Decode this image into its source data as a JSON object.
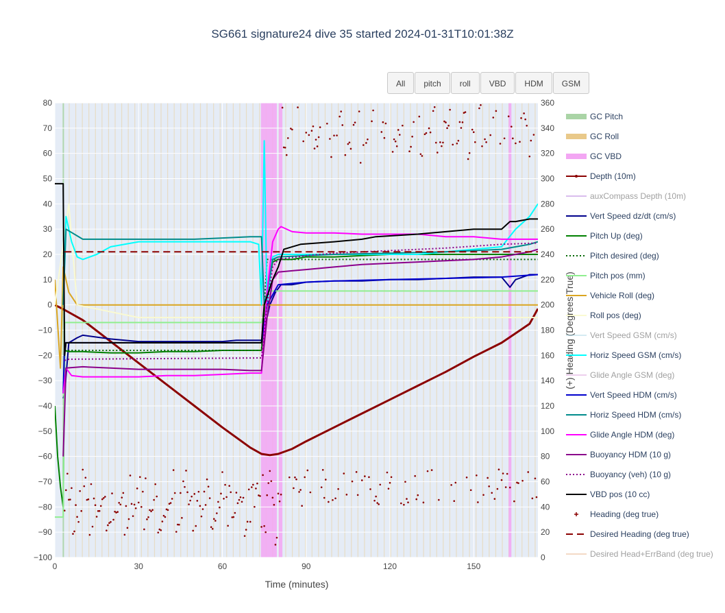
{
  "title": "SG661 signature24 dive 35 started 2024-01-31T10:01:38Z",
  "buttons": [
    {
      "label": "All"
    },
    {
      "label": "pitch"
    },
    {
      "label": "roll"
    },
    {
      "label": "VBD"
    },
    {
      "label": "HDM"
    },
    {
      "label": "GSM"
    }
  ],
  "chart_data": {
    "type": "line",
    "xlabel": "Time (minutes)",
    "ylabel": "",
    "y2label": "(+) Heading (Degrees True)",
    "xlim": [
      0,
      173
    ],
    "ylim": [
      -100,
      80
    ],
    "y2lim": [
      0,
      360
    ],
    "xticks": [
      0,
      30,
      60,
      90,
      120,
      150
    ],
    "yticks": [
      -100,
      -90,
      -80,
      -70,
      -60,
      -50,
      -40,
      -30,
      -20,
      -10,
      0,
      10,
      20,
      30,
      40,
      50,
      60,
      70,
      80
    ],
    "y2ticks": [
      0,
      20,
      40,
      60,
      80,
      100,
      120,
      140,
      160,
      180,
      200,
      220,
      240,
      260,
      280,
      300,
      320,
      340,
      360
    ],
    "grid": true,
    "legend_position": "right",
    "series": [
      {
        "name": "GC Pitch",
        "style": "band",
        "color": "#aad4a6",
        "visible": true
      },
      {
        "name": "GC Roll",
        "style": "band",
        "color": "#e9c98a",
        "visible": true
      },
      {
        "name": "GC VBD",
        "style": "band",
        "color": "#f3a6f3",
        "visible": true
      },
      {
        "name": "Depth (10m)",
        "style": "line-marker",
        "color": "#8b0000",
        "visible": true,
        "x": [
          0,
          3.5,
          10,
          20,
          30,
          40,
          50,
          60,
          70,
          74,
          77,
          80,
          85,
          90,
          100,
          110,
          120,
          130,
          140,
          150,
          160,
          170,
          173
        ],
        "y": [
          0,
          -2,
          -6,
          -14.5,
          -23,
          -31.5,
          -40,
          -48.5,
          -56.5,
          -59,
          -59.5,
          -59,
          -57,
          -54,
          -48.5,
          -43,
          -37.5,
          -32,
          -26.5,
          -20.5,
          -15,
          -7.5,
          -1.5
        ]
      },
      {
        "name": "auxCompass Depth (10m)",
        "style": "line",
        "color": "#b57edc",
        "visible": false
      },
      {
        "name": "Vert Speed dz/dt (cm/s)",
        "style": "line",
        "color": "#00008b",
        "visible": true,
        "x": [
          3,
          3.5,
          5,
          8,
          10,
          20,
          30,
          40,
          50,
          60,
          65,
          70,
          74,
          75,
          77,
          79,
          81,
          85,
          90,
          100,
          110,
          120,
          130,
          140,
          150,
          160,
          163,
          165,
          170,
          173
        ],
        "y": [
          -37,
          -35,
          -15,
          -13,
          -12,
          -13.5,
          -14.5,
          -14.5,
          -14.5,
          -14.5,
          -14,
          -14,
          -14,
          -10,
          0,
          5,
          8,
          8,
          9,
          9.5,
          9.5,
          10,
          10,
          10.5,
          11,
          11,
          7,
          10,
          12,
          12
        ]
      },
      {
        "name": "Pitch Up (deg)",
        "style": "line",
        "color": "#008000",
        "visible": true,
        "x": [
          0,
          1,
          2,
          3,
          3.5,
          5,
          10,
          20,
          30,
          40,
          50,
          60,
          70,
          74,
          76,
          78,
          80,
          85,
          90,
          100,
          110,
          120,
          130,
          140,
          150,
          160,
          165,
          170,
          173
        ],
        "y": [
          -40,
          -60,
          -72,
          -80,
          -18,
          -18.5,
          -18.5,
          -19,
          -19,
          -18.5,
          -18.5,
          -18,
          -18,
          -18,
          5,
          17,
          18,
          18,
          19,
          19,
          19.5,
          20,
          20,
          20,
          20,
          20,
          20,
          20,
          20
        ]
      },
      {
        "name": "Pitch desired (deg)",
        "style": "dot",
        "color": "#006400",
        "visible": true,
        "x": [
          3.5,
          74,
          76,
          173
        ],
        "y": [
          -18,
          -18,
          18,
          18
        ]
      },
      {
        "name": "Pitch pos (mm)",
        "style": "line",
        "color": "#90ee90",
        "visible": true,
        "x": [
          0,
          3,
          3.5,
          74,
          76,
          173
        ],
        "y": [
          -84,
          -84,
          -7,
          -7,
          5.5,
          5.5
        ]
      },
      {
        "name": "Vehicle Roll (deg)",
        "style": "line",
        "color": "#daa520",
        "visible": true,
        "x": [
          0,
          2,
          3,
          5,
          8,
          10,
          20,
          30,
          75,
          80,
          90,
          100,
          110,
          120,
          130,
          140,
          150,
          160,
          170,
          173
        ],
        "y": [
          10,
          -25,
          15,
          5,
          0,
          0,
          0,
          0,
          0,
          0,
          0,
          0,
          0,
          0,
          0,
          0,
          0,
          0,
          0,
          0
        ]
      },
      {
        "name": "Roll pos (deg)",
        "style": "line",
        "color": "#fafad2",
        "visible": true,
        "x": [
          0,
          5,
          8,
          30,
          75,
          80,
          173
        ],
        "y": [
          0,
          40,
          0,
          -5,
          -5,
          -5,
          -5
        ]
      },
      {
        "name": "Vert Speed GSM (cm/s)",
        "style": "line",
        "color": "#add8e6",
        "visible": false
      },
      {
        "name": "Horiz Speed GSM (cm/s)",
        "style": "line",
        "color": "#00ffff",
        "visible": true,
        "x": [
          3,
          4,
          6,
          8,
          10,
          15,
          20,
          30,
          40,
          50,
          60,
          70,
          73,
          74,
          75,
          76,
          78,
          80,
          85,
          90,
          100,
          110,
          120,
          130,
          140,
          150,
          160,
          165,
          170,
          173
        ],
        "y": [
          0,
          35,
          25,
          19,
          18,
          20,
          23,
          25,
          25,
          25,
          25,
          25,
          24,
          0,
          65,
          0,
          19,
          20,
          20,
          20,
          20,
          20,
          20,
          20,
          21,
          22,
          23,
          30,
          35,
          40
        ]
      },
      {
        "name": "Glide Angle GSM (deg)",
        "style": "line",
        "color": "#dda0dd",
        "visible": false
      },
      {
        "name": "Vert Speed HDM (cm/s)",
        "style": "line",
        "color": "#0000cd",
        "visible": true,
        "x": [
          3,
          3.5,
          74,
          76,
          80,
          90,
          100,
          120,
          140,
          160,
          173
        ],
        "y": [
          -35,
          -15,
          -15,
          0,
          8,
          9,
          9.5,
          10,
          10.5,
          11,
          12
        ]
      },
      {
        "name": "Horiz Speed HDM (cm/s)",
        "style": "line",
        "color": "#008b8b",
        "visible": true,
        "x": [
          3,
          4,
          10,
          20,
          30,
          40,
          50,
          60,
          70,
          74,
          75,
          76,
          78,
          80,
          90,
          100,
          120,
          140,
          160,
          170,
          173
        ],
        "y": [
          0,
          30,
          26,
          26,
          26,
          26,
          26,
          26.5,
          27,
          27,
          0,
          5,
          18,
          19,
          19.5,
          20,
          20.5,
          21,
          22,
          24,
          25
        ]
      },
      {
        "name": "Glide Angle HDM (deg)",
        "style": "line",
        "color": "#ff00ff",
        "visible": true,
        "x": [
          3,
          4,
          6,
          10,
          20,
          30,
          40,
          50,
          60,
          70,
          74,
          76,
          78,
          80,
          81,
          85,
          90,
          100,
          110,
          120,
          130,
          140,
          150,
          160,
          170,
          173
        ],
        "y": [
          -35,
          -25,
          -28,
          -28.5,
          -28.5,
          -28.5,
          -28,
          -28,
          -27.5,
          -27,
          -27,
          5,
          25,
          30,
          31,
          29,
          28.5,
          28.5,
          28,
          28,
          28,
          27,
          27,
          26,
          26,
          26
        ]
      },
      {
        "name": "Buoyancy HDM (10 g)",
        "style": "line",
        "color": "#8b008b",
        "visible": true,
        "x": [
          3,
          4,
          10,
          20,
          30,
          40,
          50,
          60,
          70,
          74,
          76,
          78,
          80,
          85,
          90,
          100,
          110,
          120,
          130,
          140,
          150,
          160,
          170,
          173
        ],
        "y": [
          -60,
          -25,
          -24.5,
          -25,
          -25.5,
          -25.5,
          -25.5,
          -25.5,
          -26,
          -26,
          -5,
          10,
          13,
          13.5,
          14,
          15,
          16,
          16.5,
          17,
          17.5,
          18,
          19,
          21,
          22
        ]
      },
      {
        "name": "Buoyancy (veh) (10 g)",
        "style": "dot",
        "color": "#8b008b",
        "visible": true,
        "x": [
          3.5,
          5,
          74,
          76,
          78,
          80,
          90,
          100,
          120,
          140,
          160,
          173
        ],
        "y": [
          -22,
          -21.5,
          -21,
          0,
          15,
          18,
          19.5,
          20.5,
          21.5,
          22.5,
          24,
          24.5
        ]
      },
      {
        "name": "VBD pos (10 cc)",
        "style": "line",
        "color": "#000000",
        "visible": true,
        "x": [
          0,
          3,
          3.5,
          4,
          74,
          75,
          78,
          80,
          82,
          85,
          88,
          100,
          110,
          115,
          130,
          140,
          150,
          160,
          163,
          165,
          170,
          173
        ],
        "y": [
          48,
          48,
          -20,
          -15,
          -15,
          0,
          10,
          15,
          22,
          23,
          24,
          25,
          26,
          27,
          28,
          29,
          30,
          30,
          33,
          33,
          34,
          34
        ]
      },
      {
        "name": "Heading (deg true)",
        "style": "marker",
        "color": "#8b0000",
        "visible": true
      },
      {
        "name": "Desired Heading (deg true)",
        "style": "dash",
        "color": "#8b0000",
        "visible": true,
        "x": [
          3.5,
          74,
          75,
          173
        ],
        "y2": [
          242,
          242,
          242,
          242
        ]
      },
      {
        "name": "Desired Head+ErrBand (deg true)",
        "style": "line",
        "color": "#e9b48c",
        "visible": false
      }
    ]
  }
}
